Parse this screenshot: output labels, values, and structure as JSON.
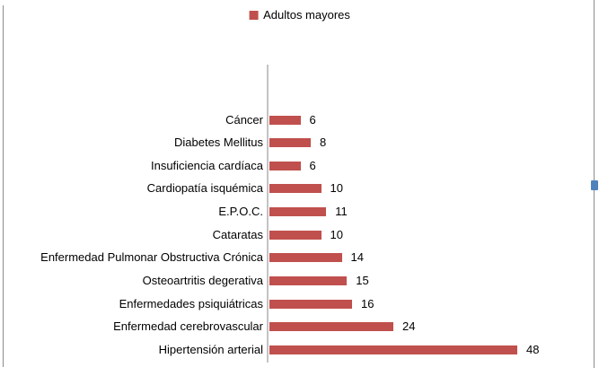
{
  "chart": {
    "legend": {
      "label": "Adultos mayores",
      "position": "top"
    }
  },
  "chart_data": {
    "type": "bar",
    "orientation": "horizontal",
    "title": "",
    "series_name": "Adultos mayores",
    "categories": [
      "Cáncer",
      "Diabetes Mellitus",
      "Insuficiencia cardíaca",
      "Cardiopatía isquémica",
      "E.P.O.C.",
      "Cataratas",
      "Enfermedad Pulmonar Obstructiva Crónica",
      "Osteoartritis degerativa",
      "Enfermedades psiquiátricas",
      "Enfermedad cerebrovascular",
      "Hipertensión arterial"
    ],
    "values": [
      6,
      8,
      6,
      10,
      11,
      10,
      14,
      15,
      16,
      24,
      48
    ],
    "data_labels": [
      "6",
      "8",
      "6",
      "10",
      "11",
      "10",
      "14",
      "15",
      "16",
      "24",
      "48"
    ],
    "xlim": [
      0,
      48
    ],
    "gridlines": false,
    "legend_position": "top",
    "colors": {
      "bar": "#C0504D",
      "axis_line": "#C3C3C3",
      "text": "#000000",
      "page_border": "#8C8C8C",
      "selection_handle": "#4F81BD"
    }
  }
}
